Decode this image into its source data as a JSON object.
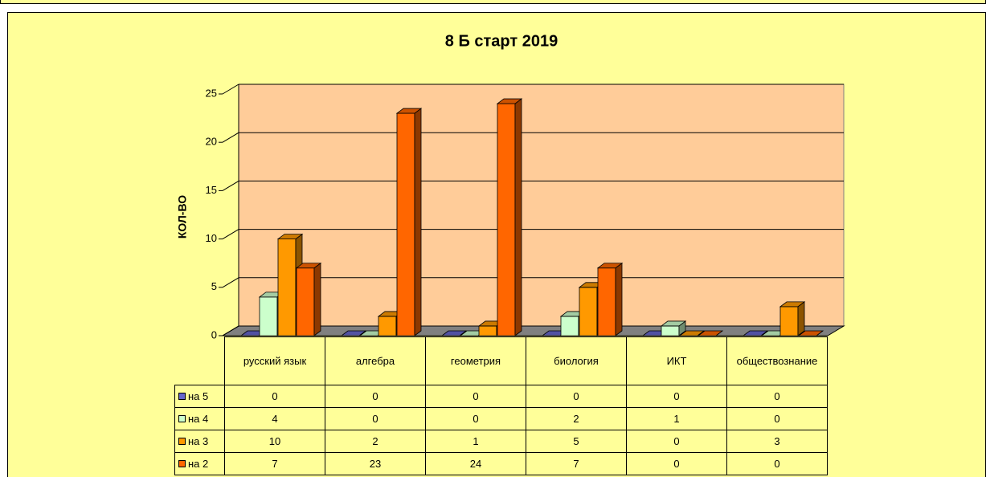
{
  "chart_data": {
    "type": "bar3d",
    "title": "8 Б старт 2019",
    "y_label": "КОЛ-ВО",
    "categories": [
      "русский язык",
      "алгебра",
      "геометрия",
      "биология",
      "ИКТ",
      "обществознание"
    ],
    "series": [
      {
        "name": "на 5",
        "color": "#6666cc",
        "values": [
          0,
          0,
          0,
          0,
          0,
          0
        ]
      },
      {
        "name": "на 4",
        "color": "#ccffcc",
        "values": [
          4,
          0,
          0,
          2,
          1,
          0
        ]
      },
      {
        "name": "на 3",
        "color": "#ff9900",
        "values": [
          10,
          2,
          1,
          5,
          0,
          3
        ]
      },
      {
        "name": "на 2",
        "color": "#ff6600",
        "values": [
          7,
          23,
          24,
          7,
          0,
          0
        ]
      }
    ],
    "ylim": [
      0,
      25
    ],
    "yticks": [
      0,
      5,
      10,
      15,
      20,
      25
    ],
    "grid": true,
    "wall_color": "#ffcc99",
    "floor_color": "#808080"
  }
}
